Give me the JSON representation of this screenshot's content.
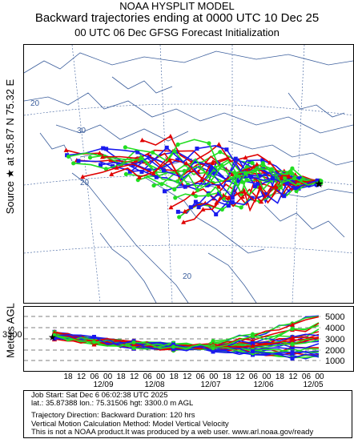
{
  "header": {
    "line1": "NOAA HYSPLIT MODEL",
    "line2": "Backward trajectories ending at 0000 UTC 10 Dec 25",
    "line3": "00 UTC 06 Dec    GFSG  Forecast Initialization"
  },
  "side": {
    "source_label": "Source ★ at  35.87 N  75.32 E",
    "meters_label": "Meters AGL",
    "start_height": "3300"
  },
  "map": {
    "lat_labels": [
      "20",
      "30",
      "20"
    ],
    "lon_labels": [
      "20"
    ],
    "land_color": "#ffffff",
    "border_color": "#3b5e9c"
  },
  "vertical": {
    "right_ticks": [
      "5000",
      "4000",
      "3000",
      "2000",
      "1000"
    ]
  },
  "time_axis": {
    "hour_ticks": [
      "18",
      "12",
      "06",
      "00",
      "18",
      "12",
      "06",
      "00",
      "18",
      "12",
      "06",
      "00",
      "18",
      "12",
      "06",
      "00",
      "18",
      "12",
      "06",
      "00"
    ],
    "date_ticks": [
      "12/09",
      "12/08",
      "12/07",
      "12/06",
      "12/05"
    ]
  },
  "info": {
    "line1": "Job Start: Sat Dec  6 06:02:38 UTC 2025",
    "line2": "lat.: 35.87388   lon.: 75.31506   hgt: 3300.0 m AGL",
    "line3": "Trajectory Direction: Backward      Duration: 120 hrs",
    "line4": "Vertical Motion Calculation Method: Model Vertical Velocity",
    "line5": "This is not a NOAA product.It was produced by a web user. www.arl.noaa.gov/ready"
  },
  "series_colors": {
    "red": "#e00000",
    "blue": "#1a1aee",
    "green": "#22dd22"
  }
}
